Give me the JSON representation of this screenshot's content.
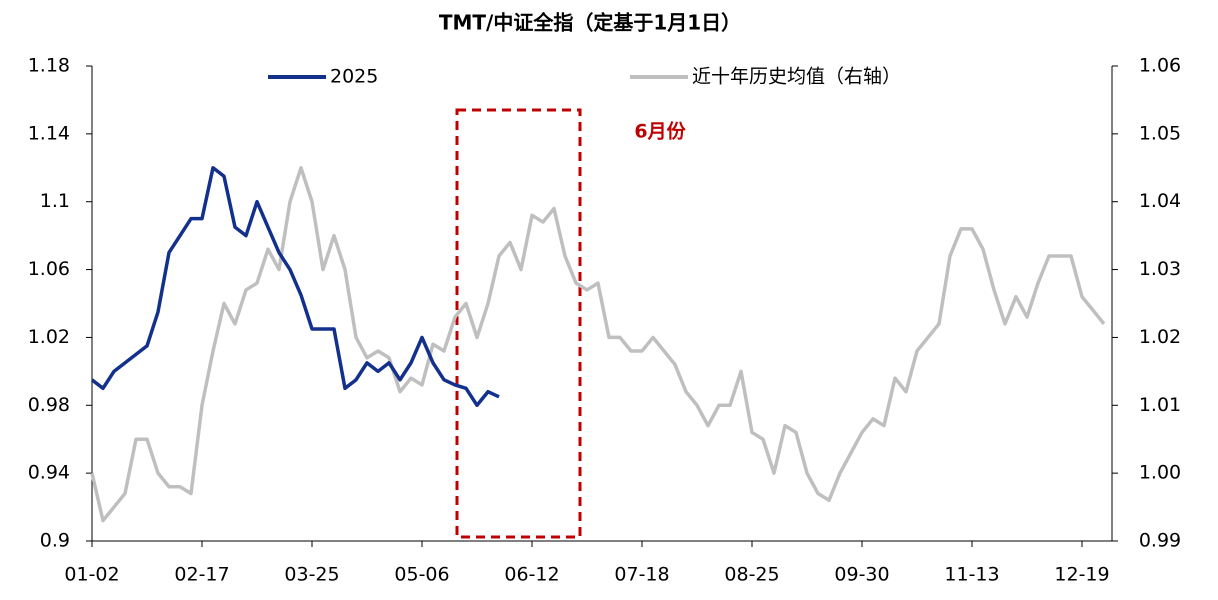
{
  "chart_data": {
    "type": "line",
    "title": "TMT/中证全指（定基于1月1日）",
    "annotation": "6月份",
    "legend": "top",
    "categories": [
      "01-02",
      null,
      null,
      null,
      null,
      null,
      null,
      null,
      null,
      null,
      "02-17",
      null,
      null,
      null,
      null,
      null,
      null,
      null,
      null,
      null,
      "03-25",
      null,
      null,
      null,
      null,
      null,
      null,
      null,
      null,
      null,
      "05-06",
      null,
      null,
      null,
      null,
      null,
      null,
      null,
      null,
      null,
      "06-12",
      null,
      null,
      null,
      null,
      null,
      null,
      null,
      null,
      null,
      "07-18",
      null,
      null,
      null,
      null,
      null,
      null,
      null,
      null,
      null,
      "08-25",
      null,
      null,
      null,
      null,
      null,
      null,
      null,
      null,
      null,
      "09-30",
      null,
      null,
      null,
      null,
      null,
      null,
      null,
      null,
      null,
      "11-13",
      null,
      null,
      null,
      null,
      null,
      null,
      null,
      null,
      null,
      "12-19",
      null,
      null
    ],
    "ylim": [
      0.9,
      1.18
    ],
    "yticks": [
      0.9,
      0.94,
      0.98,
      1.02,
      1.06,
      1.1,
      1.14,
      1.18
    ],
    "y2lim": [
      0.99,
      1.06
    ],
    "y2ticks": [
      0.99,
      {
        "value": 1,
        "label": "1.00"
      },
      1.01,
      1.02,
      1.03,
      1.04,
      1.05,
      1.06
    ],
    "series": [
      {
        "name": "2025",
        "color": "#13318c",
        "values": [
          0.995,
          0.99,
          1.0,
          1.005,
          1.01,
          1.015,
          1.035,
          1.07,
          1.08,
          1.09,
          1.09,
          1.12,
          1.115,
          1.085,
          1.08,
          1.1,
          1.085,
          1.07,
          1.06,
          1.045,
          1.025,
          1.025,
          1.025,
          0.99,
          0.995,
          1.005,
          1.0,
          1.005,
          0.995,
          1.005,
          1.02,
          1.005,
          0.995,
          0.992,
          0.99,
          0.98,
          0.988,
          0.985,
          null,
          null,
          null,
          null,
          null,
          null,
          null,
          null,
          null,
          null,
          null,
          null,
          null,
          null,
          null,
          null,
          null,
          null,
          null,
          null,
          null,
          null,
          null,
          null,
          null,
          null,
          null,
          null,
          null,
          null,
          null,
          null,
          null,
          null,
          null,
          null,
          null,
          null,
          null,
          null,
          null,
          null,
          null,
          null,
          null,
          null,
          null,
          null,
          null,
          null,
          null,
          null,
          null,
          null,
          null
        ]
      },
      {
        "name": "近十年历史均值（右轴）",
        "color": "#bfbfbf",
        "axis": "y2",
        "values": [
          1.0,
          0.993,
          0.995,
          0.997,
          1.005,
          1.005,
          1.0,
          0.998,
          0.998,
          0.997,
          1.01,
          1.018,
          1.025,
          1.022,
          1.027,
          1.028,
          1.033,
          1.03,
          1.04,
          1.045,
          1.04,
          1.03,
          1.035,
          1.03,
          1.02,
          1.017,
          1.018,
          1.017,
          1.012,
          1.014,
          1.013,
          1.019,
          1.018,
          1.023,
          1.025,
          1.02,
          1.025,
          1.032,
          1.034,
          1.03,
          1.038,
          1.037,
          1.039,
          1.032,
          1.028,
          1.027,
          1.028,
          1.02,
          1.02,
          1.018,
          1.018,
          1.02,
          1.018,
          1.016,
          1.012,
          1.01,
          1.007,
          1.01,
          1.01,
          1.015,
          1.006,
          1.005,
          1.0,
          1.007,
          1.006,
          1.0,
          0.997,
          0.996,
          1.0,
          1.003,
          1.006,
          1.008,
          1.007,
          1.014,
          1.012,
          1.018,
          1.02,
          1.022,
          1.032,
          1.036,
          1.036,
          1.033,
          1.027,
          1.022,
          1.026,
          1.023,
          1.028,
          1.032,
          1.032,
          1.032,
          1.026,
          1.024,
          1.022
        ]
      }
    ]
  }
}
